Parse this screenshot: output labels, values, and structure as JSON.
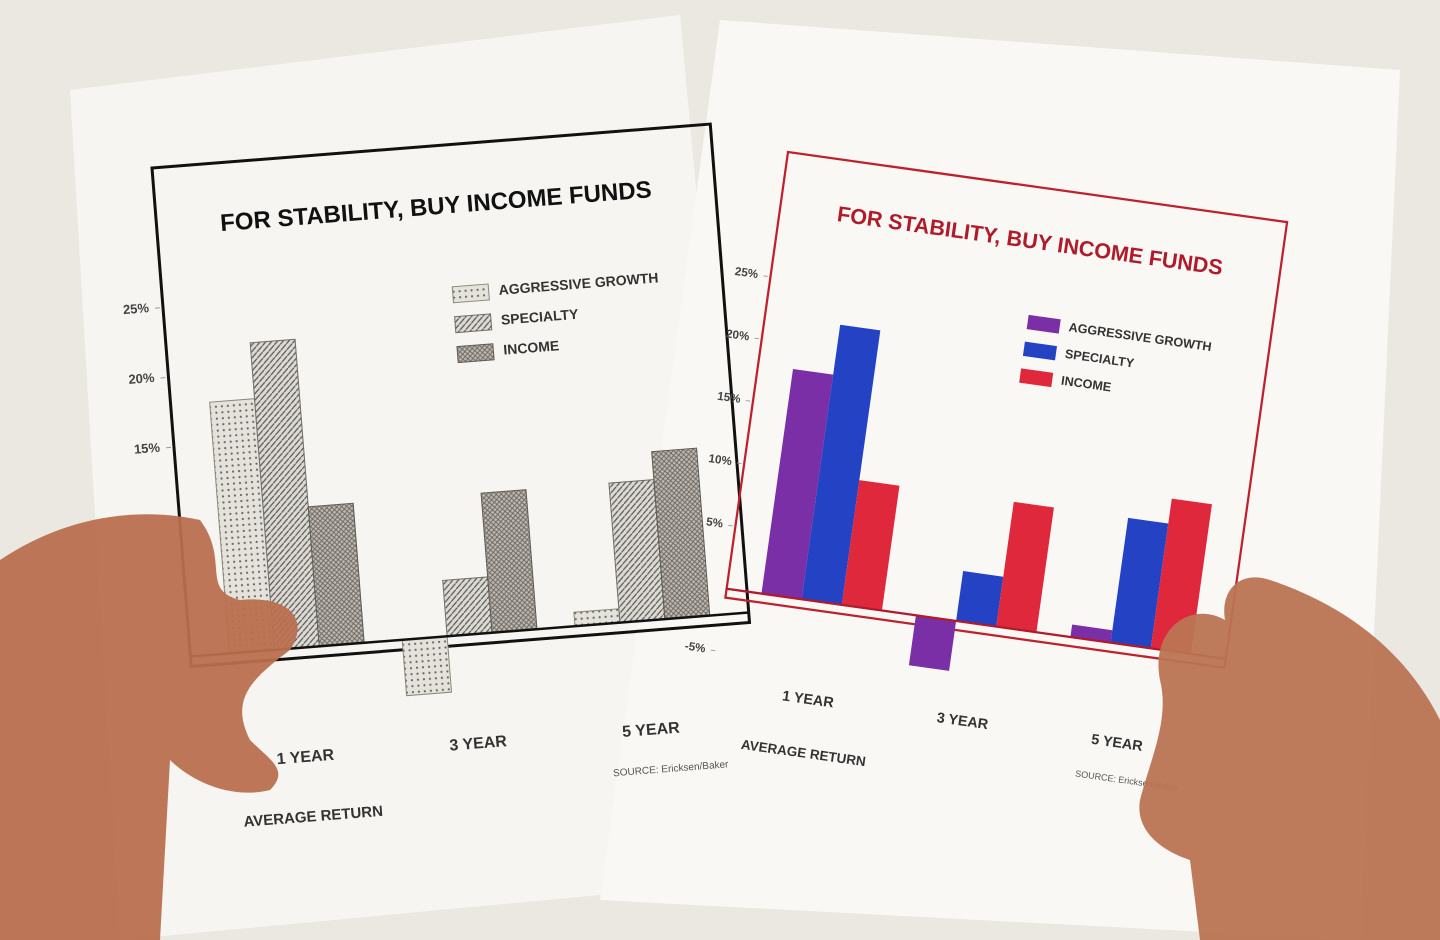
{
  "chart_data": [
    {
      "type": "bar",
      "title": "FOR STABILITY, BUY INCOME FUNDS",
      "categories": [
        "1 YEAR",
        "3 YEAR",
        "5 YEAR"
      ],
      "series": [
        {
          "name": "AGGRESSIVE GROWTH",
          "color": "#8a8a7a",
          "pattern": "dots",
          "values": [
            18,
            -4,
            1
          ]
        },
        {
          "name": "SPECIALTY",
          "color": "#6f6f68",
          "pattern": "diagonal",
          "values": [
            22,
            4,
            10
          ]
        },
        {
          "name": "INCOME",
          "color": "#5e5a55",
          "pattern": "cross",
          "values": [
            10,
            10,
            12
          ]
        }
      ],
      "ylim": [
        -5,
        25
      ],
      "yticks": [
        {
          "value": 25,
          "label": "25%"
        },
        {
          "value": 20,
          "label": "20%"
        },
        {
          "value": 15,
          "label": "15%"
        }
      ],
      "x_label": "AVERAGE RETURN",
      "source": "SOURCE: Ericksen/Baker",
      "legend": "upper right"
    },
    {
      "type": "bar",
      "title": "FOR STABILITY, BUY INCOME FUNDS",
      "categories": [
        "1 YEAR",
        "3 YEAR",
        "5 YEAR"
      ],
      "series": [
        {
          "name": "AGGRESSIVE GROWTH",
          "color": "#7b2fa6",
          "values": [
            18,
            -4,
            1
          ]
        },
        {
          "name": "SPECIALTY",
          "color": "#2443c4",
          "values": [
            22,
            4,
            10
          ]
        },
        {
          "name": "INCOME",
          "color": "#e0283c",
          "values": [
            10,
            10,
            12
          ]
        }
      ],
      "ylim": [
        -5,
        25
      ],
      "yticks": [
        {
          "value": 25,
          "label": "25%"
        },
        {
          "value": 20,
          "label": "20%"
        },
        {
          "value": 15,
          "label": "15%"
        },
        {
          "value": 10,
          "label": "10%"
        },
        {
          "value": 5,
          "label": "5%"
        },
        {
          "value": -5,
          "label": "-5%"
        }
      ],
      "x_label": "AVERAGE RETURN",
      "source": "SOURCE: Ericksen/Baker",
      "legend": "upper right"
    }
  ]
}
